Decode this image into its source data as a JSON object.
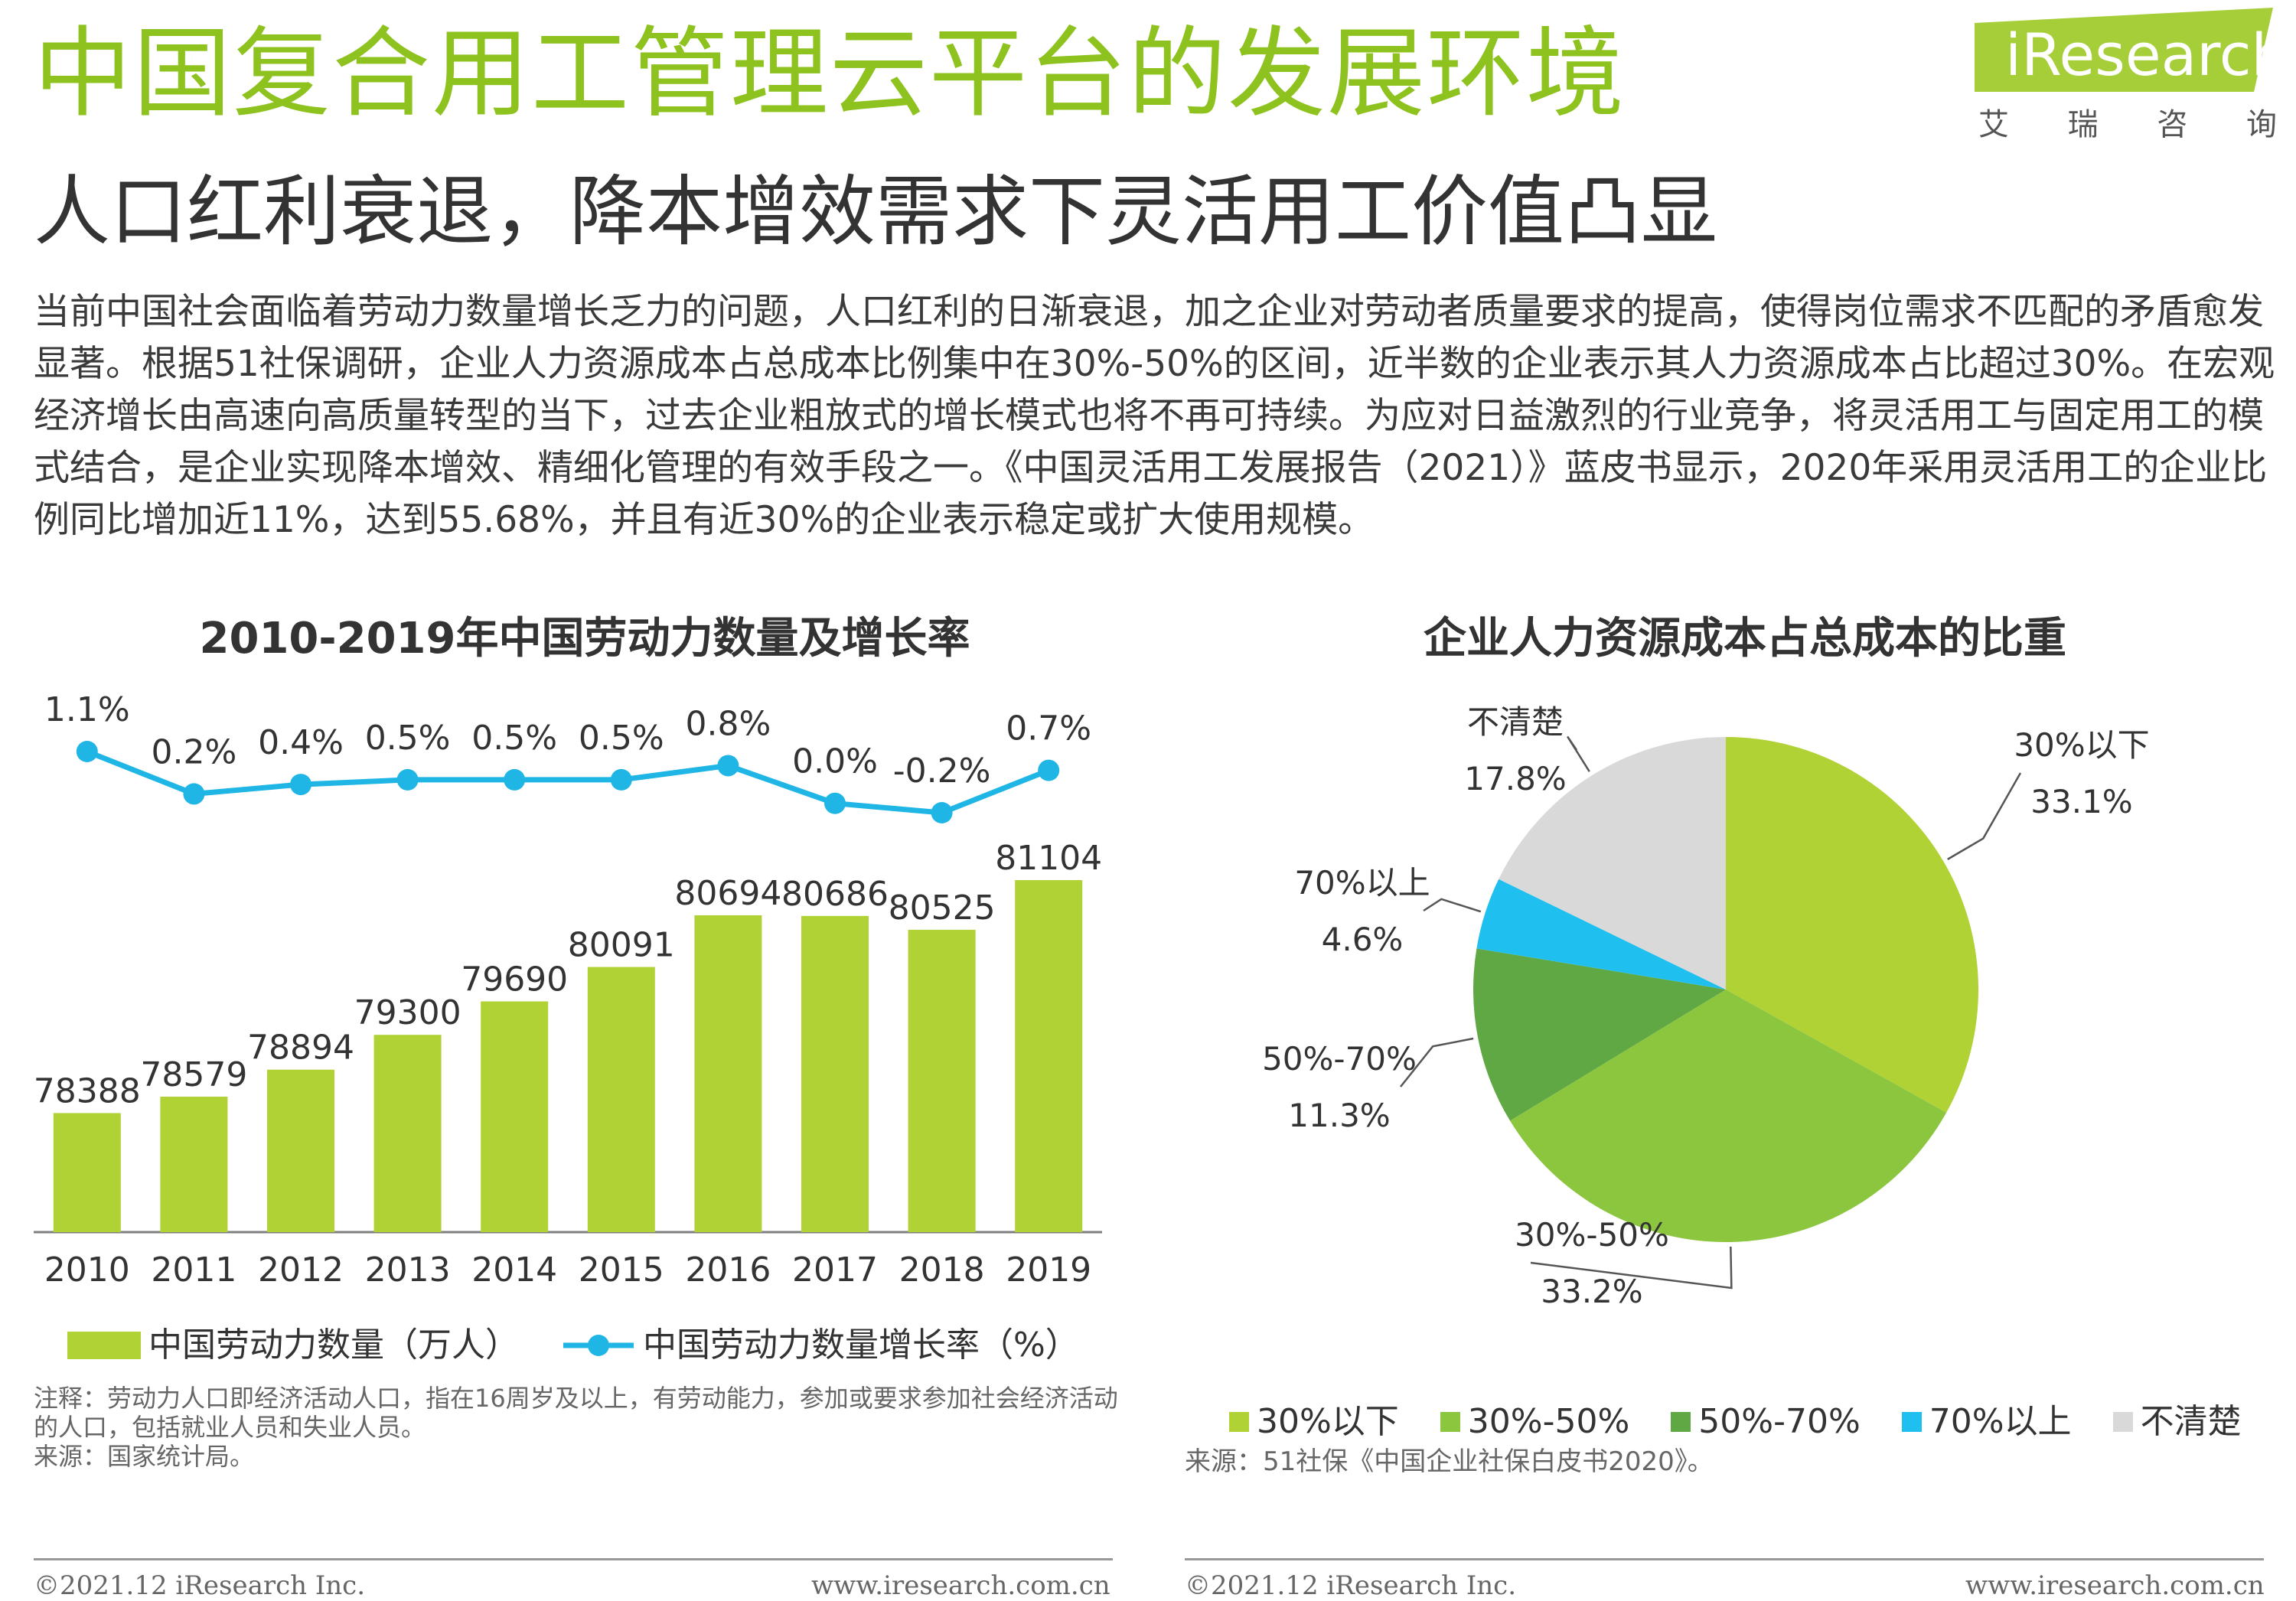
{
  "header": {
    "title": "中国复合用工管理云平台的发展环境",
    "subtitle": "人口红利衰退，降本增效需求下灵活用工价值凸显",
    "logo_text": "iResearch",
    "logo_sub": [
      "艾",
      "瑞",
      "咨",
      "询"
    ]
  },
  "body_text": "当前中国社会面临着劳动力数量增长乏力的问题，人口红利的日渐衰退，加之企业对劳动者质量要求的提高，使得岗位需求不匹配的矛盾愈发显著。根据51社保调研，企业人力资源成本占总成本比例集中在30%-50%的区间，近半数的企业表示其人力资源成本占比超过30%。在宏观经济增长由高速向高质量转型的当下，过去企业粗放式的增长模式也将不再可持续。为应对日益激烈的行业竞争，将灵活用工与固定用工的模式结合，是企业实现降本增效、精细化管理的有效手段之一。《中国灵活用工发展报告（2021）》蓝皮书显示，2020年采用灵活用工的企业比例同比增加近11%，达到55.68%，并且有近30%的企业表示稳定或扩大使用规模。",
  "chart_data": [
    {
      "type": "bar",
      "title": "2010-2019年中国劳动力数量及增长率",
      "categories": [
        "2010",
        "2011",
        "2012",
        "2013",
        "2014",
        "2015",
        "2016",
        "2017",
        "2018",
        "2019"
      ],
      "series": [
        {
          "name": "中国劳动力数量（万人）",
          "type": "bar",
          "values": [
            78388,
            78579,
            78894,
            79300,
            79690,
            80091,
            80694,
            80686,
            80525,
            81104
          ],
          "color": "#b0d235"
        },
        {
          "name": "中国劳动力数量增长率（%）",
          "type": "line",
          "values": [
            1.1,
            0.2,
            0.4,
            0.5,
            0.5,
            0.5,
            0.8,
            0.0,
            -0.2,
            0.7
          ],
          "labels": [
            "1.1%",
            "0.2%",
            "0.4%",
            "0.5%",
            "0.5%",
            "0.5%",
            "0.8%",
            "0.0%",
            "-0.2%",
            "0.7%"
          ],
          "color": "#1fb6e6"
        }
      ],
      "legend": "bottom",
      "grid": false
    },
    {
      "type": "pie",
      "title": "企业人力资源成本占总成本的比重",
      "slices": [
        {
          "name": "30%以下",
          "value": 33.1,
          "label": "33.1%",
          "color": "#b0d235"
        },
        {
          "name": "30%-50%",
          "value": 33.2,
          "label": "33.2%",
          "color": "#8cc63f"
        },
        {
          "name": "50%-70%",
          "value": 11.3,
          "label": "11.3%",
          "color": "#5fa843"
        },
        {
          "name": "70%以上",
          "value": 4.6,
          "label": "4.6%",
          "color": "#1fc0ef"
        },
        {
          "name": "不清楚",
          "value": 17.8,
          "label": "17.8%",
          "color": "#d9d9d9"
        }
      ],
      "legend": "bottom"
    }
  ],
  "notes": {
    "left_note": "注释：劳动力人口即经济活动人口，指在16周岁及以上，有劳动能力，参加或要求参加社会经济活动的人口，包括就业人员和失业人员。",
    "left_source": "来源：国家统计局。",
    "right_source": "来源：51社保《中国企业社保白皮书2020》。"
  },
  "footer": {
    "copyright": "©2021.12 iResearch Inc.",
    "url": "www.iresearch.com.cn"
  },
  "colors": {
    "title_green": "#8dc21f",
    "bar_green": "#b0d235",
    "line_blue": "#1fb6e6"
  }
}
